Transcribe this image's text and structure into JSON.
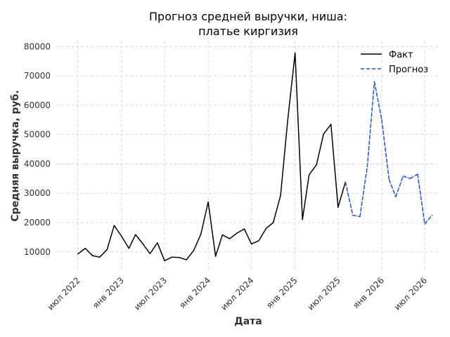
{
  "chart_data": {
    "type": "line",
    "title": [
      "Прогноз средней выручки, ниша:",
      "платье киргизия"
    ],
    "xlabel": "Дата",
    "ylabel": "Средняя выручка, руб.",
    "ylim": [
      3000,
      82000
    ],
    "xlim": [
      "2022-04-01",
      "2026-09-01"
    ],
    "y_ticks": [
      10000,
      20000,
      30000,
      40000,
      50000,
      60000,
      70000,
      80000
    ],
    "x_ticks": [
      {
        "date": "2022-07-01",
        "label": "июл 2022"
      },
      {
        "date": "2023-01-01",
        "label": "янв 2023"
      },
      {
        "date": "2023-07-01",
        "label": "июл 2023"
      },
      {
        "date": "2024-01-01",
        "label": "янв 2024"
      },
      {
        "date": "2024-07-01",
        "label": "июл 2024"
      },
      {
        "date": "2025-01-01",
        "label": "янв 2025"
      },
      {
        "date": "2025-07-01",
        "label": "июл 2025"
      },
      {
        "date": "2026-01-01",
        "label": "янв 2026"
      },
      {
        "date": "2026-07-01",
        "label": "июл 2026"
      }
    ],
    "grid": true,
    "legend_position": "top-right",
    "series": [
      {
        "name": "Факт",
        "color": "#000000",
        "style": "solid",
        "x": [
          "2022-07",
          "2022-08",
          "2022-09",
          "2022-10",
          "2022-11",
          "2022-12",
          "2023-01",
          "2023-02",
          "2023-03",
          "2023-04",
          "2023-05",
          "2023-06",
          "2023-07",
          "2023-08",
          "2023-09",
          "2023-10",
          "2023-11",
          "2023-12",
          "2024-01",
          "2024-02",
          "2024-03",
          "2024-04",
          "2024-05",
          "2024-06",
          "2024-07",
          "2024-08",
          "2024-09",
          "2024-10",
          "2024-11",
          "2024-12",
          "2025-01",
          "2025-02",
          "2025-03",
          "2025-04",
          "2025-05",
          "2025-06",
          "2025-07",
          "2025-08"
        ],
        "values": [
          9300,
          11200,
          8700,
          8200,
          10800,
          19000,
          15300,
          11200,
          15900,
          12700,
          9400,
          13100,
          7000,
          8200,
          8100,
          7300,
          10500,
          16000,
          27000,
          8500,
          15800,
          14500,
          16400,
          17800,
          12700,
          13800,
          18000,
          20000,
          29300,
          55000,
          77800,
          21000,
          36300,
          39700,
          50200,
          53500,
          25200,
          33800
        ]
      },
      {
        "name": "Прогноз",
        "color": "#1f4fd9",
        "style": "dashed",
        "x": [
          "2025-08",
          "2025-09",
          "2025-10",
          "2025-11",
          "2025-12",
          "2026-01",
          "2026-02",
          "2026-03",
          "2026-04",
          "2026-05",
          "2026-06",
          "2026-07",
          "2026-08"
        ],
        "values": [
          33800,
          22500,
          22000,
          39000,
          68000,
          55000,
          34600,
          28800,
          35800,
          35000,
          36500,
          19500,
          22500
        ]
      }
    ]
  }
}
